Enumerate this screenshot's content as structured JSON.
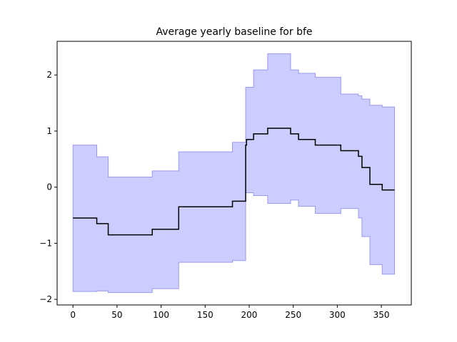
{
  "chart_data": {
    "type": "line",
    "title": "Average yearly baseline for bfe",
    "xlabel": "",
    "ylabel": "",
    "xlim": [
      -18,
      384
    ],
    "ylim": [
      -2.1,
      2.6
    ],
    "xticks": [
      0,
      50,
      100,
      150,
      200,
      250,
      300,
      350
    ],
    "yticks": [
      -2,
      -1,
      0,
      1,
      2
    ],
    "grid": false,
    "legend": "none",
    "colors": {
      "mean_line": "#000000",
      "band_fill": "#ccccff",
      "band_edge": "#9999ee"
    },
    "mean_steps": [
      {
        "x": 0,
        "y": -0.55
      },
      {
        "x": 27,
        "y": -0.65
      },
      {
        "x": 40,
        "y": -0.85
      },
      {
        "x": 90,
        "y": -0.75
      },
      {
        "x": 120,
        "y": -0.35
      },
      {
        "x": 181,
        "y": -0.25
      },
      {
        "x": 196,
        "y": 0.75
      },
      {
        "x": 197,
        "y": 0.85
      },
      {
        "x": 205,
        "y": 0.95
      },
      {
        "x": 221,
        "y": 1.05
      },
      {
        "x": 247,
        "y": 0.95
      },
      {
        "x": 256,
        "y": 0.85
      },
      {
        "x": 275,
        "y": 0.75
      },
      {
        "x": 304,
        "y": 0.65
      },
      {
        "x": 324,
        "y": 0.55
      },
      {
        "x": 328,
        "y": 0.35
      },
      {
        "x": 337,
        "y": 0.05
      },
      {
        "x": 351,
        "y": -0.05
      },
      {
        "x": 365,
        "y": -0.05
      }
    ],
    "upper_steps": [
      {
        "x": 0,
        "y": 0.75
      },
      {
        "x": 27,
        "y": 0.54
      },
      {
        "x": 40,
        "y": 0.18
      },
      {
        "x": 90,
        "y": 0.29
      },
      {
        "x": 120,
        "y": 0.63
      },
      {
        "x": 181,
        "y": 0.8
      },
      {
        "x": 196,
        "y": 1.78
      },
      {
        "x": 205,
        "y": 2.09
      },
      {
        "x": 221,
        "y": 2.38
      },
      {
        "x": 247,
        "y": 2.09
      },
      {
        "x": 256,
        "y": 2.03
      },
      {
        "x": 275,
        "y": 1.96
      },
      {
        "x": 304,
        "y": 1.66
      },
      {
        "x": 324,
        "y": 1.63
      },
      {
        "x": 328,
        "y": 1.57
      },
      {
        "x": 337,
        "y": 1.46
      },
      {
        "x": 351,
        "y": 1.43
      },
      {
        "x": 365,
        "y": 1.43
      }
    ],
    "lower_steps": [
      {
        "x": 0,
        "y": -1.86
      },
      {
        "x": 27,
        "y": -1.85
      },
      {
        "x": 40,
        "y": -1.88
      },
      {
        "x": 90,
        "y": -1.81
      },
      {
        "x": 120,
        "y": -1.34
      },
      {
        "x": 181,
        "y": -1.31
      },
      {
        "x": 196,
        "y": -0.1
      },
      {
        "x": 205,
        "y": -0.15
      },
      {
        "x": 221,
        "y": -0.29
      },
      {
        "x": 247,
        "y": -0.23
      },
      {
        "x": 256,
        "y": -0.34
      },
      {
        "x": 275,
        "y": -0.47
      },
      {
        "x": 304,
        "y": -0.38
      },
      {
        "x": 324,
        "y": -0.55
      },
      {
        "x": 328,
        "y": -0.88
      },
      {
        "x": 337,
        "y": -1.38
      },
      {
        "x": 351,
        "y": -1.55
      },
      {
        "x": 365,
        "y": -1.55
      }
    ]
  }
}
